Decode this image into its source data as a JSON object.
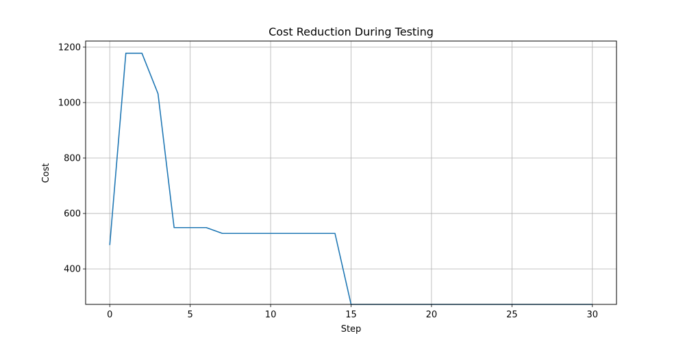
{
  "chart_data": {
    "type": "line",
    "title": "Cost Reduction During Testing",
    "xlabel": "Step",
    "ylabel": "Cost",
    "xlim": [
      -1.5,
      31.5
    ],
    "ylim": [
      272,
      1222
    ],
    "xticks": [
      0,
      5,
      10,
      15,
      20,
      25,
      30
    ],
    "yticks": [
      400,
      600,
      800,
      1000,
      1200
    ],
    "grid": true,
    "series": [
      {
        "color": "#1f77b4",
        "x": [
          0,
          1,
          2,
          3,
          4,
          5,
          6,
          7,
          8,
          9,
          10,
          11,
          12,
          13,
          14,
          15,
          16,
          17,
          18,
          19,
          20,
          21,
          22,
          23,
          24,
          25,
          26,
          27,
          28,
          29,
          30
        ],
        "y": [
          486,
          1178,
          1178,
          1032,
          549,
          549,
          549,
          528,
          528,
          528,
          528,
          528,
          528,
          528,
          528,
          272,
          272,
          272,
          272,
          272,
          272,
          272,
          272,
          272,
          272,
          272,
          272,
          272,
          272,
          272,
          272
        ]
      }
    ]
  }
}
